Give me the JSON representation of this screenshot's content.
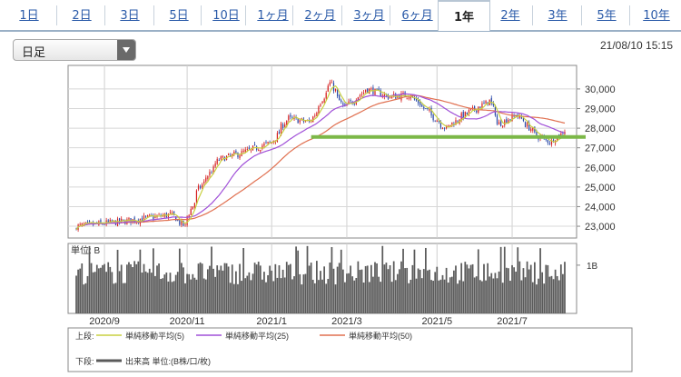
{
  "tabs": [
    {
      "label": "1日",
      "active": false
    },
    {
      "label": "2日",
      "active": false
    },
    {
      "label": "3日",
      "active": false
    },
    {
      "label": "5日",
      "active": false
    },
    {
      "label": "10日",
      "active": false
    },
    {
      "label": "1ヶ月",
      "active": false
    },
    {
      "label": "2ヶ月",
      "active": false
    },
    {
      "label": "3ヶ月",
      "active": false
    },
    {
      "label": "6ヶ月",
      "active": false
    },
    {
      "label": "1年",
      "active": true
    },
    {
      "label": "2年",
      "active": false
    },
    {
      "label": "3年",
      "active": false
    },
    {
      "label": "5年",
      "active": false
    },
    {
      "label": "10年",
      "active": false
    }
  ],
  "period_select": {
    "value": "日足"
  },
  "timestamp": "21/08/10 15:15",
  "colors": {
    "candle_up": "#d62020",
    "candle_down": "#2848a8",
    "ma5": "#c8d040",
    "ma25": "#a050d8",
    "ma50": "#e07050",
    "support_line": "#7cb848",
    "volume": "#5a5a5a",
    "tab_link": "#2a5aa8"
  },
  "chart_data": [
    {
      "type": "candlestick",
      "ylim": [
        22400,
        31200
      ],
      "yticks": [
        23000,
        24000,
        25000,
        26000,
        27000,
        28000,
        29000,
        30000
      ],
      "ytick_labels": [
        "23,000",
        "24,000",
        "25,000",
        "26,000",
        "27,000",
        "28,000",
        "29,000",
        "30,000"
      ],
      "x_labels": [
        "2020/9",
        "2020/11",
        "2021/1",
        "2021/3",
        "2021/5",
        "2021/7"
      ],
      "price_path": {
        "dates": [
          "2020-08-11",
          "2020-09-15",
          "2020-10-20",
          "2020-10-30",
          "2020-11-10",
          "2020-11-25",
          "2020-12-15",
          "2021-01-04",
          "2021-01-15",
          "2021-02-01",
          "2021-02-16",
          "2021-02-26",
          "2021-03-15",
          "2021-04-01",
          "2021-04-16",
          "2021-05-13",
          "2021-05-25",
          "2021-06-15",
          "2021-06-21",
          "2021-07-05",
          "2021-07-20",
          "2021-07-30",
          "2021-08-10"
        ],
        "close": [
          23000,
          23250,
          23600,
          23000,
          24900,
          26400,
          26800,
          27300,
          28500,
          28300,
          30300,
          29000,
          30000,
          29600,
          29700,
          28000,
          28600,
          29400,
          28200,
          28700,
          27600,
          27300,
          27900
        ]
      },
      "support_level": 27550,
      "legend": [
        {
          "group": "上段:",
          "label": "単純移動平均(5)",
          "color_key": "ma5"
        },
        {
          "group": "",
          "label": "単純移動平均(25)",
          "color_key": "ma25"
        },
        {
          "group": "",
          "label": "単純移動平均(50)",
          "color_key": "ma50"
        }
      ]
    },
    {
      "type": "bar",
      "ylabel": "単位: B",
      "ytick_label": "1B",
      "ytick_value": 1.0,
      "ylim": [
        0,
        1.45
      ],
      "typical_range": [
        0.6,
        1.3
      ],
      "legend": [
        {
          "group": "下段:",
          "label": "出来高 単位:(B株/口/枚)"
        }
      ]
    }
  ]
}
